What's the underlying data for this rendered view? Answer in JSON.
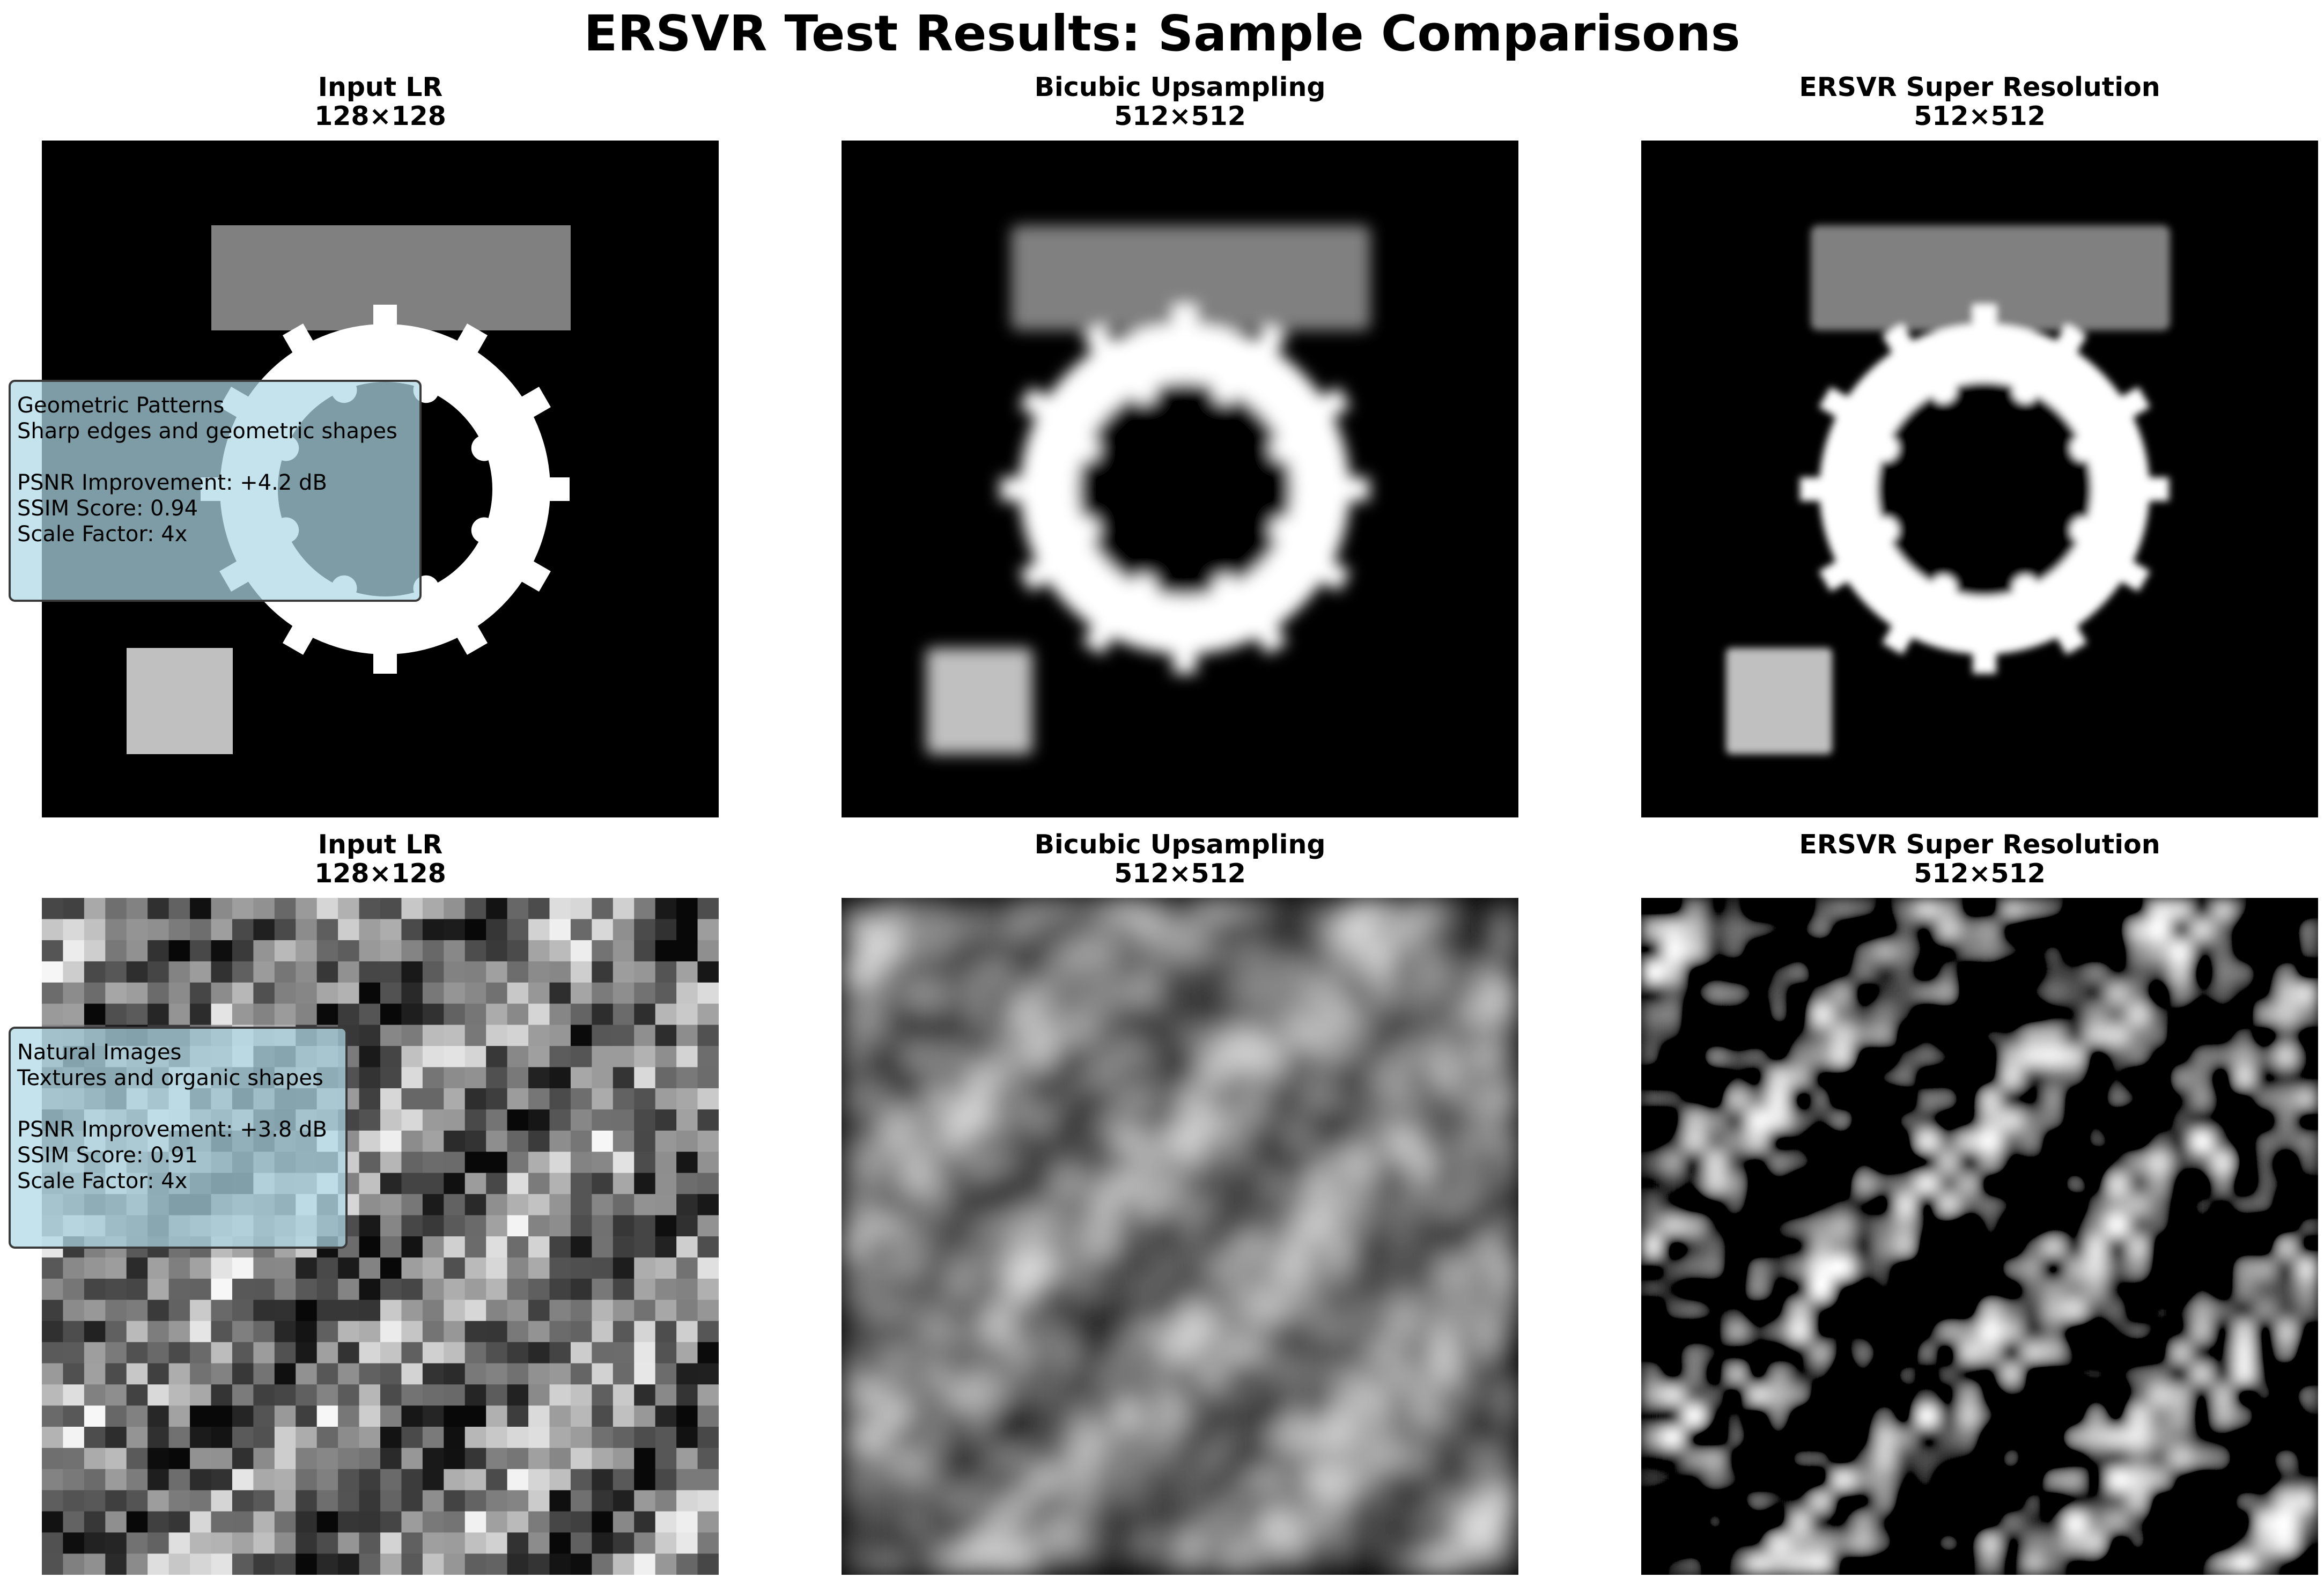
{
  "title": "ERSVR Test Results: Sample Comparisons",
  "columns": [
    {
      "name": "Input LR",
      "size": "128×128"
    },
    {
      "name": "Bicubic Upsampling",
      "size": "512×512"
    },
    {
      "name": "ERSVR Super Resolution",
      "size": "512×512"
    }
  ],
  "rows": [
    {
      "category": "Geometric Patterns",
      "description": "Sharp edges and geometric shapes",
      "psnr": "PSNR Improvement: +4.2 dB",
      "ssim": "SSIM Score: 0.94",
      "scale": "Scale Factor: 4x"
    },
    {
      "category": "Natural Images",
      "description": "Textures and organic shapes",
      "psnr": "PSNR Improvement: +3.8 dB",
      "ssim": "SSIM Score: 0.91",
      "scale": "Scale Factor: 4x"
    }
  ],
  "colors": {
    "background": "#000000",
    "rectangle": "#808080",
    "ring": "#ffffff",
    "small_square": "#c0c0c0",
    "info_box": "#add8e6"
  }
}
